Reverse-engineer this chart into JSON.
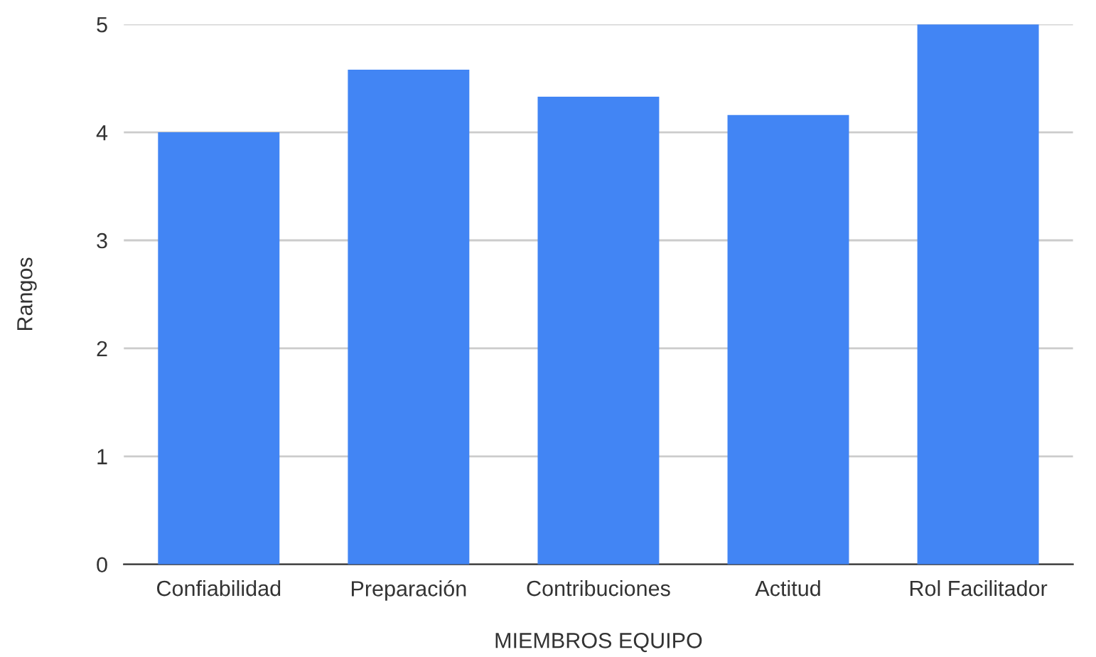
{
  "chart_data": {
    "type": "bar",
    "xlabel": "MIEMBROS EQUIPO",
    "ylabel": "Rangos",
    "categories": [
      "Confiabilidad",
      "Preparación",
      "Contribuciones",
      "Actitud",
      "Rol Facilitador"
    ],
    "values": [
      4.0,
      4.58,
      4.33,
      4.16,
      5.0
    ],
    "color": "#4285f4",
    "ylim": [
      0,
      5
    ],
    "yticks": [
      0,
      1,
      2,
      3,
      4,
      5
    ],
    "grid": "y",
    "legend": false
  }
}
